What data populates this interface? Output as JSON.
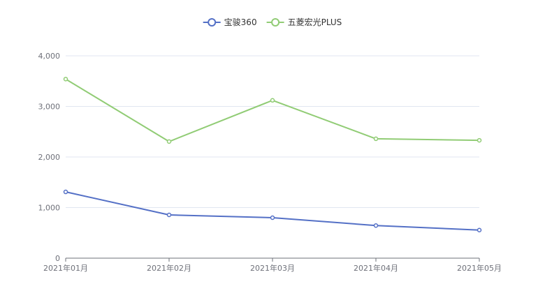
{
  "chart_data": {
    "type": "line",
    "categories": [
      "2021年01月",
      "2021年02月",
      "2021年03月",
      "2021年04月",
      "2021年05月"
    ],
    "series": [
      {
        "name": "宝骏360",
        "values": [
          1310,
          855,
          800,
          645,
          555
        ],
        "color": "#5470c6"
      },
      {
        "name": "五菱宏光PLUS",
        "values": [
          3540,
          2305,
          3120,
          2360,
          2330
        ],
        "color": "#91cc75"
      }
    ],
    "yticks": [
      "0",
      "1,000",
      "2,000",
      "3,000",
      "4,000"
    ],
    "ylim": [
      0,
      4000
    ],
    "grid": true,
    "legend_position": "top-center"
  }
}
